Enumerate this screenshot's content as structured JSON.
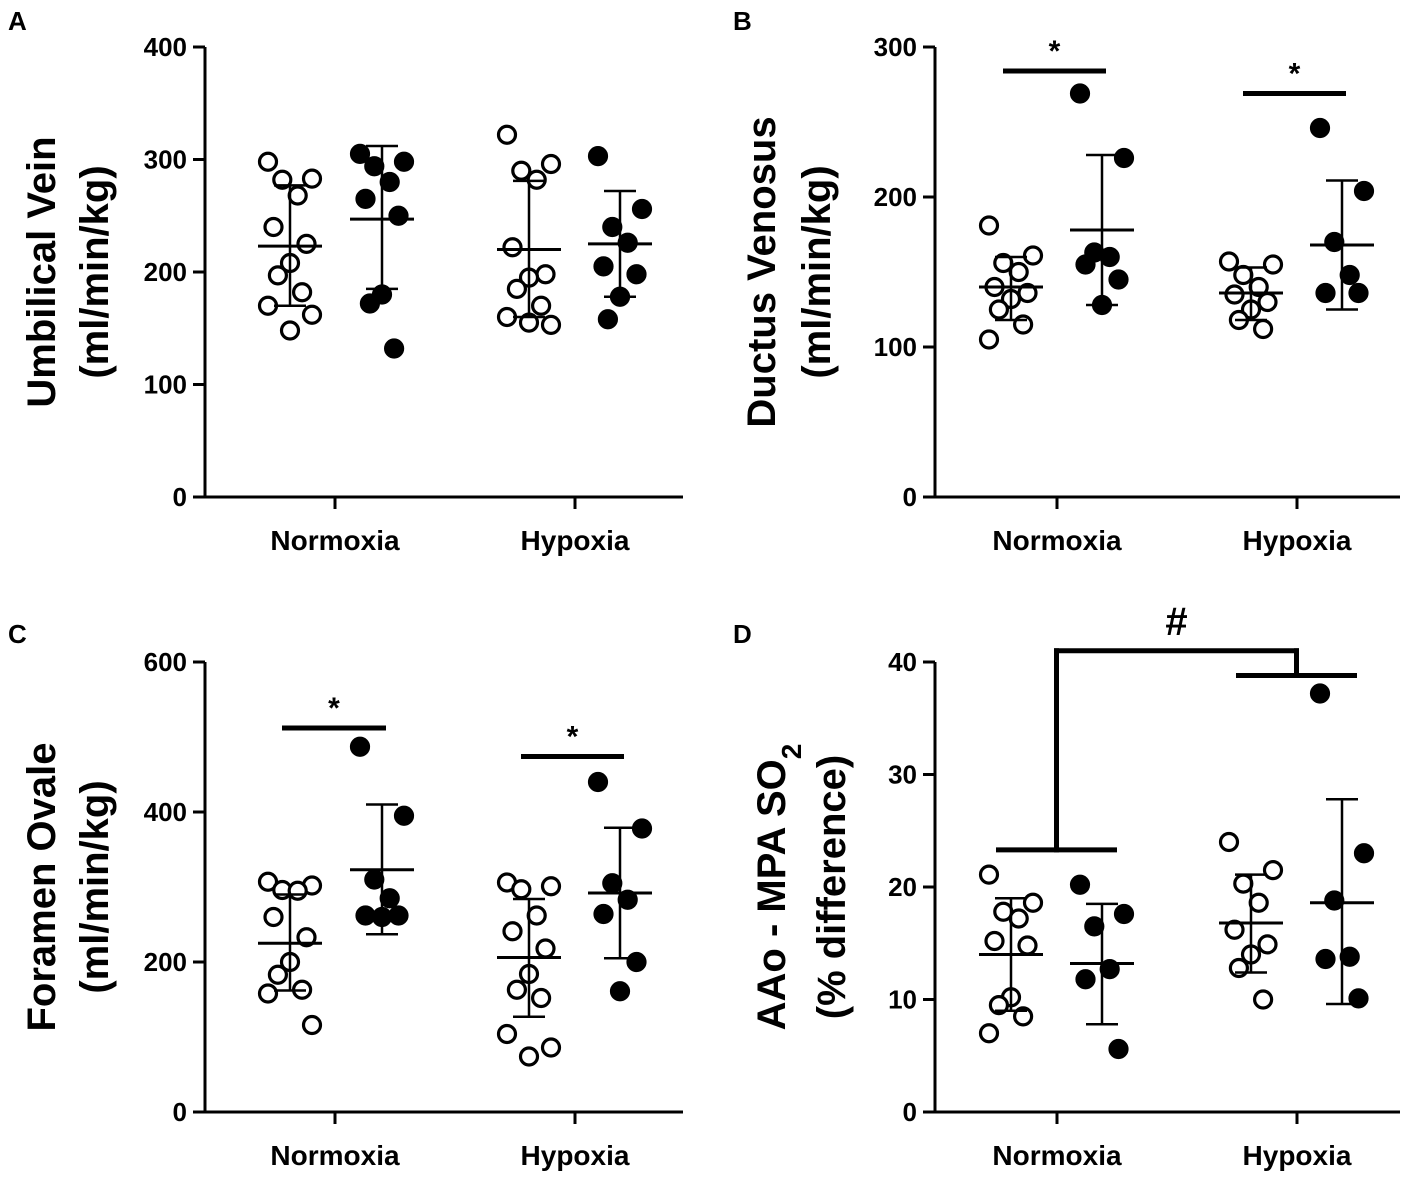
{
  "colors": {
    "ink": "#000000",
    "paper": "#ffffff"
  },
  "chart_data": [
    {
      "panel": "A",
      "type": "scatter",
      "ylabel_line1": "Umbilical Vein",
      "ylabel_line2": "(ml/min/kg)",
      "ylim": [
        0,
        400
      ],
      "yticks": [
        0,
        100,
        200,
        300,
        400
      ],
      "ytick_labels": [
        "0",
        "100",
        "200",
        "300",
        "400"
      ],
      "categories": [
        "Normoxia",
        "Hypoxia"
      ],
      "groups": [
        {
          "category": "Normoxia",
          "fill": "open",
          "mean": 223,
          "sd_low": 170,
          "sd_high": 277,
          "values": [
            298,
            283,
            282,
            268,
            240,
            225,
            208,
            197,
            182,
            170,
            162,
            148
          ]
        },
        {
          "category": "Normoxia",
          "fill": "filled",
          "mean": 247,
          "sd_low": 185,
          "sd_high": 312,
          "values": [
            305,
            298,
            294,
            280,
            265,
            250,
            180,
            172,
            132
          ]
        },
        {
          "category": "Hypoxia",
          "fill": "open",
          "mean": 220,
          "sd_low": 160,
          "sd_high": 281,
          "values": [
            322,
            296,
            290,
            282,
            222,
            198,
            195,
            185,
            170,
            160,
            153,
            155
          ]
        },
        {
          "category": "Hypoxia",
          "fill": "filled",
          "mean": 225,
          "sd_low": 178,
          "sd_high": 272,
          "values": [
            303,
            256,
            240,
            226,
            205,
            198,
            178,
            158
          ]
        }
      ],
      "brackets": []
    },
    {
      "panel": "B",
      "type": "scatter",
      "ylabel_line1": "Ductus Venosus",
      "ylabel_line2": "(ml/min/kg)",
      "ylim": [
        0,
        300
      ],
      "yticks": [
        0,
        100,
        200,
        300
      ],
      "ytick_labels": [
        "0",
        "100",
        "200",
        "300"
      ],
      "categories": [
        "Normoxia",
        "Hypoxia"
      ],
      "groups": [
        {
          "category": "Normoxia",
          "fill": "open",
          "mean": 140,
          "sd_low": 118,
          "sd_high": 160,
          "values": [
            181,
            161,
            156,
            150,
            140,
            136,
            132,
            125,
            115,
            105
          ]
        },
        {
          "category": "Normoxia",
          "fill": "filled",
          "mean": 178,
          "sd_low": 128,
          "sd_high": 228,
          "values": [
            269,
            226,
            163,
            160,
            155,
            145,
            128
          ]
        },
        {
          "category": "Hypoxia",
          "fill": "open",
          "mean": 136,
          "sd_low": 118,
          "sd_high": 153,
          "values": [
            157,
            155,
            148,
            140,
            135,
            130,
            125,
            118,
            112
          ]
        },
        {
          "category": "Hypoxia",
          "fill": "filled",
          "mean": 168,
          "sd_low": 125,
          "sd_high": 211,
          "values": [
            246,
            204,
            170,
            148,
            136,
            136
          ]
        }
      ],
      "brackets": [
        {
          "category": "Normoxia",
          "y": 284,
          "label": "*"
        },
        {
          "category": "Hypoxia",
          "y": 269,
          "label": "*"
        }
      ]
    },
    {
      "panel": "C",
      "type": "scatter",
      "ylabel_line1": "Foramen Ovale",
      "ylabel_line2": "(ml/min/kg)",
      "ylim": [
        0,
        600
      ],
      "yticks": [
        0,
        200,
        400,
        600
      ],
      "ytick_labels": [
        "0",
        "200",
        "400",
        "600"
      ],
      "categories": [
        "Normoxia",
        "Hypoxia"
      ],
      "groups": [
        {
          "category": "Normoxia",
          "fill": "open",
          "mean": 225,
          "sd_low": 162,
          "sd_high": 290,
          "values": [
            307,
            302,
            296,
            295,
            260,
            233,
            200,
            183,
            163,
            158,
            116
          ]
        },
        {
          "category": "Normoxia",
          "fill": "filled",
          "mean": 323,
          "sd_low": 237,
          "sd_high": 410,
          "values": [
            487,
            395,
            310,
            285,
            262,
            262,
            260
          ]
        },
        {
          "category": "Hypoxia",
          "fill": "open",
          "mean": 206,
          "sd_low": 127,
          "sd_high": 284,
          "values": [
            306,
            301,
            297,
            262,
            241,
            218,
            184,
            163,
            152,
            104,
            86,
            74
          ]
        },
        {
          "category": "Hypoxia",
          "fill": "filled",
          "mean": 292,
          "sd_low": 205,
          "sd_high": 379,
          "values": [
            440,
            378,
            305,
            283,
            264,
            200,
            161
          ]
        }
      ],
      "brackets": [
        {
          "category": "Normoxia",
          "y": 512,
          "label": "*"
        },
        {
          "category": "Hypoxia",
          "y": 474,
          "label": "*"
        }
      ]
    },
    {
      "panel": "D",
      "type": "scatter",
      "ylabel_line1": "AAo - MPA SO",
      "ylabel_sub": "2",
      "ylabel_line2": "(% difference)",
      "ylim": [
        0,
        40
      ],
      "yticks": [
        0,
        10,
        20,
        30,
        40
      ],
      "ytick_labels": [
        "0",
        "10",
        "20",
        "30",
        "40"
      ],
      "categories": [
        "Normoxia",
        "Hypoxia"
      ],
      "groups": [
        {
          "category": "Normoxia",
          "fill": "open",
          "mean": 14.0,
          "sd_low": 9.0,
          "sd_high": 19.0,
          "values": [
            21.1,
            18.6,
            17.8,
            17.2,
            15.2,
            14.8,
            10.2,
            9.5,
            8.5,
            7.0
          ]
        },
        {
          "category": "Normoxia",
          "fill": "filled",
          "mean": 13.2,
          "sd_low": 7.8,
          "sd_high": 18.5,
          "values": [
            20.2,
            17.6,
            16.5,
            12.7,
            11.8,
            5.6
          ]
        },
        {
          "category": "Hypoxia",
          "fill": "open",
          "mean": 16.8,
          "sd_low": 12.4,
          "sd_high": 21.1,
          "values": [
            24.0,
            21.5,
            20.3,
            18.6,
            16.2,
            14.9,
            14.0,
            12.8,
            10.0
          ]
        },
        {
          "category": "Hypoxia",
          "fill": "filled",
          "mean": 18.6,
          "sd_low": 9.6,
          "sd_high": 27.8,
          "values": [
            37.2,
            23.0,
            18.8,
            13.8,
            13.6,
            10.1
          ]
        }
      ],
      "group_brackets": [
        {
          "category": "Normoxia",
          "y": 23.3
        },
        {
          "category": "Hypoxia",
          "y": 38.8
        }
      ],
      "connector": {
        "y": 41.0,
        "label": "#"
      }
    }
  ]
}
